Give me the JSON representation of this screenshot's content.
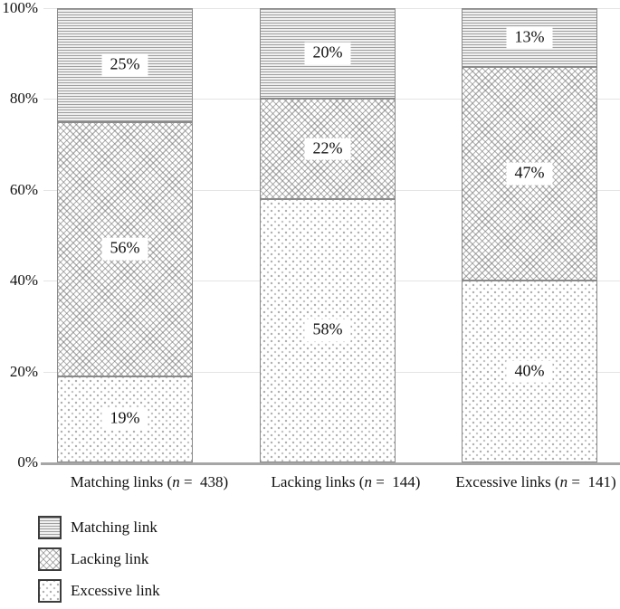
{
  "chart_data": {
    "type": "bar",
    "stacked": true,
    "percent_axis": true,
    "title": "",
    "xlabel": "",
    "ylabel": "",
    "ylim": [
      0,
      100
    ],
    "grid": true,
    "y_ticks": [
      "100%",
      "80%",
      "60%",
      "40%",
      "20%",
      "0%"
    ],
    "categories": [
      {
        "axis_label_before_n": "Matching links (",
        "axis_label_n": "n",
        "axis_label_after_n": " =  438)",
        "n_value": 438
      },
      {
        "axis_label_before_n": "Lacking links (",
        "axis_label_n": "n",
        "axis_label_after_n": " =  144)",
        "n_value": 144
      },
      {
        "axis_label_before_n": "Excessive links (",
        "axis_label_n": "n",
        "axis_label_after_n": " =  141)",
        "n_value": 141
      }
    ],
    "stack_order": "bottom_to_top",
    "series": [
      {
        "name": "Excessive link",
        "pattern": "dots",
        "values": [
          19,
          58,
          40
        ],
        "labels": [
          "19%",
          "58%",
          "40%"
        ]
      },
      {
        "name": "Lacking link",
        "pattern": "crosshatch",
        "values": [
          56,
          22,
          47
        ],
        "labels": [
          "56%",
          "22%",
          "47%"
        ]
      },
      {
        "name": "Matching link",
        "pattern": "hlines",
        "values": [
          25,
          20,
          13
        ],
        "labels": [
          "25%",
          "20%",
          "13%"
        ]
      }
    ],
    "legend": {
      "position": "bottom-left",
      "items": [
        {
          "label": "Matching link",
          "pattern": "hlines"
        },
        {
          "label": "Lacking link",
          "pattern": "crosshatch"
        },
        {
          "label": "Excessive link",
          "pattern": "dots"
        }
      ]
    }
  },
  "colors": {
    "background": "#ffffff",
    "gridline": "#e4e4e4",
    "axis_line": "#a6a6a6",
    "bar_border": "#8a8a8a",
    "pattern_ink": "#9c9c9c",
    "text": "#111111"
  }
}
